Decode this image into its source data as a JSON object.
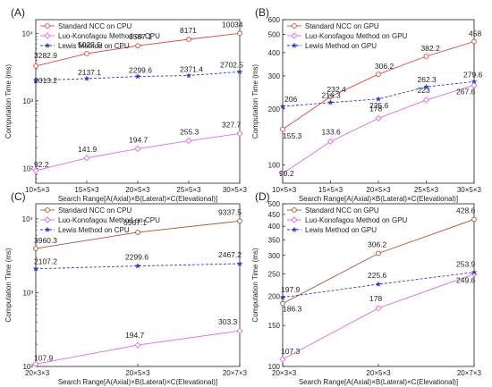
{
  "figure": {
    "xlabel": "Search Range[A(Axial)×B(Lateral)×C(Elevational)]",
    "ylabel": "Computation Time (ms)"
  },
  "chart_data": [
    {
      "panel": "(A)",
      "type": "line",
      "log_y": true,
      "ylim": [
        60,
        16000
      ],
      "yticks": [
        {
          "v": 100,
          "t": "10²"
        },
        {
          "v": 1000,
          "t": "10³"
        },
        {
          "v": 10000,
          "t": "10⁴"
        }
      ],
      "categories": [
        "10×5×3",
        "15×5×3",
        "20×5×3",
        "25×5×3",
        "30×5×3"
      ],
      "legend_placement": "top-left",
      "series": [
        {
          "name": "Standard NCC on CPU",
          "color": "#e8423f",
          "dash": "",
          "marker": "circle",
          "values": [
            3282.9,
            5022.5,
            6567.1,
            8171,
            10034
          ],
          "labels": [
            "3282.9",
            "5022.5",
            "6567.1",
            "8171",
            "10034"
          ]
        },
        {
          "name": "Luo-Konofagou Method on CPU",
          "color": "#e06ae8",
          "dash": "",
          "marker": "diamond",
          "values": [
            92.2,
            141.9,
            194.7,
            255.3,
            327.7
          ],
          "labels": [
            "92.2",
            "141.9",
            "194.7",
            "255.3",
            "327.7"
          ]
        },
        {
          "name": "Lewis Method on CPU",
          "color": "#2a3ccf",
          "dash": "3,2",
          "marker": "star",
          "values": [
            2013.2,
            2137.1,
            2299.6,
            2371.4,
            2702.5
          ],
          "labels": [
            "2013.2",
            "2137.1",
            "2299.6",
            "2371.4",
            "2702.5"
          ]
        }
      ]
    },
    {
      "panel": "(B)",
      "type": "line",
      "log_y": true,
      "ylim": [
        80,
        600
      ],
      "yticks": [
        {
          "v": 100,
          "t": "100"
        },
        {
          "v": 200,
          "t": "200"
        },
        {
          "v": 300,
          "t": "300"
        },
        {
          "v": 400,
          "t": "400"
        },
        {
          "v": 500,
          "t": "500"
        },
        {
          "v": 600,
          "t": "600"
        }
      ],
      "categories": [
        "10×5×3",
        "15×5×3",
        "20×5×3",
        "25×5×3",
        "30×5×3"
      ],
      "legend_placement": "top-left",
      "series": [
        {
          "name": "Standard NCC on GPU",
          "color": "#e8423f",
          "dash": "",
          "marker": "circle",
          "values": [
            155.3,
            232.4,
            306.2,
            382.2,
            458
          ],
          "labels": [
            "155.3",
            "232.4",
            "306.2",
            "382.2",
            "458"
          ]
        },
        {
          "name": "Luo-Konofagou Method on GPU",
          "color": "#e06ae8",
          "dash": "",
          "marker": "diamond",
          "values": [
            90.2,
            133.6,
            178,
            223,
            267.6
          ],
          "labels": [
            "90.2",
            "133.6",
            "178",
            "223",
            "267.6"
          ]
        },
        {
          "name": "Lewis Method on GPU",
          "color": "#2a3ccf",
          "dash": "3,2",
          "marker": "star",
          "values": [
            206,
            216.3,
            225.6,
            262.3,
            279.6
          ],
          "labels": [
            "206",
            "216.3",
            "225.6",
            "262.3",
            "279.6"
          ]
        }
      ]
    },
    {
      "panel": "(C)",
      "type": "line",
      "log_y": true,
      "ylim": [
        100,
        16000
      ],
      "yticks": [
        {
          "v": 100,
          "t": "10²"
        },
        {
          "v": 1000,
          "t": "10³"
        },
        {
          "v": 10000,
          "t": "10⁴"
        }
      ],
      "categories": [
        "20×3×3",
        "20×5×3",
        "20×7×3"
      ],
      "legend_placement": "top-left",
      "series": [
        {
          "name": "Standard NCC on CPU",
          "color": "#a8552a",
          "dash": "",
          "marker": "circle",
          "values": [
            3960.3,
            6567.1,
            9337.5
          ],
          "labels": [
            "3960.3",
            "6567.1",
            "9337.5"
          ]
        },
        {
          "name": "Luo-Konofagou Method on CPU",
          "color": "#e06ae8",
          "dash": "",
          "marker": "diamond",
          "values": [
            107.9,
            194.7,
            303.3
          ],
          "labels": [
            "107.9",
            "194.7",
            "303.3"
          ]
        },
        {
          "name": "Lewis Method on CPU",
          "color": "#2a3ccf",
          "dash": "3,2",
          "marker": "star",
          "values": [
            2107.2,
            2299.6,
            2467.2
          ],
          "labels": [
            "2107.2",
            "2299.6",
            "2467.2"
          ]
        }
      ]
    },
    {
      "panel": "(D)",
      "type": "line",
      "log_y": true,
      "ylim": [
        100,
        500
      ],
      "yticks": [
        {
          "v": 100,
          "t": "100"
        },
        {
          "v": 150,
          "t": "150"
        },
        {
          "v": 200,
          "t": "200"
        },
        {
          "v": 250,
          "t": "250"
        },
        {
          "v": 300,
          "t": "300"
        },
        {
          "v": 350,
          "t": "350"
        },
        {
          "v": 400,
          "t": "400"
        },
        {
          "v": 450,
          "t": "450"
        },
        {
          "v": 500,
          "t": "500"
        }
      ],
      "categories": [
        "20×3×3",
        "20×5×3",
        "20×7×3"
      ],
      "legend_placement": "top-left",
      "series": [
        {
          "name": "Standard NCC on GPU",
          "color": "#a8552a",
          "dash": "",
          "marker": "circle",
          "values": [
            186.3,
            306.2,
            428.6
          ],
          "labels": [
            "186.3",
            "306.2",
            "428.6"
          ]
        },
        {
          "name": "Luo-Konofagou Method on GPU",
          "color": "#e06ae8",
          "dash": "",
          "marker": "diamond",
          "values": [
            107.3,
            178,
            249.6
          ],
          "labels": [
            "107.3",
            "178",
            "249.6"
          ]
        },
        {
          "name": "Lewis Method on GPU",
          "color": "#2a3ccf",
          "dash": "3,2",
          "marker": "star",
          "values": [
            197.9,
            225.6,
            253.9
          ],
          "labels": [
            "197.9",
            "225.6",
            "253.9"
          ]
        }
      ]
    }
  ]
}
